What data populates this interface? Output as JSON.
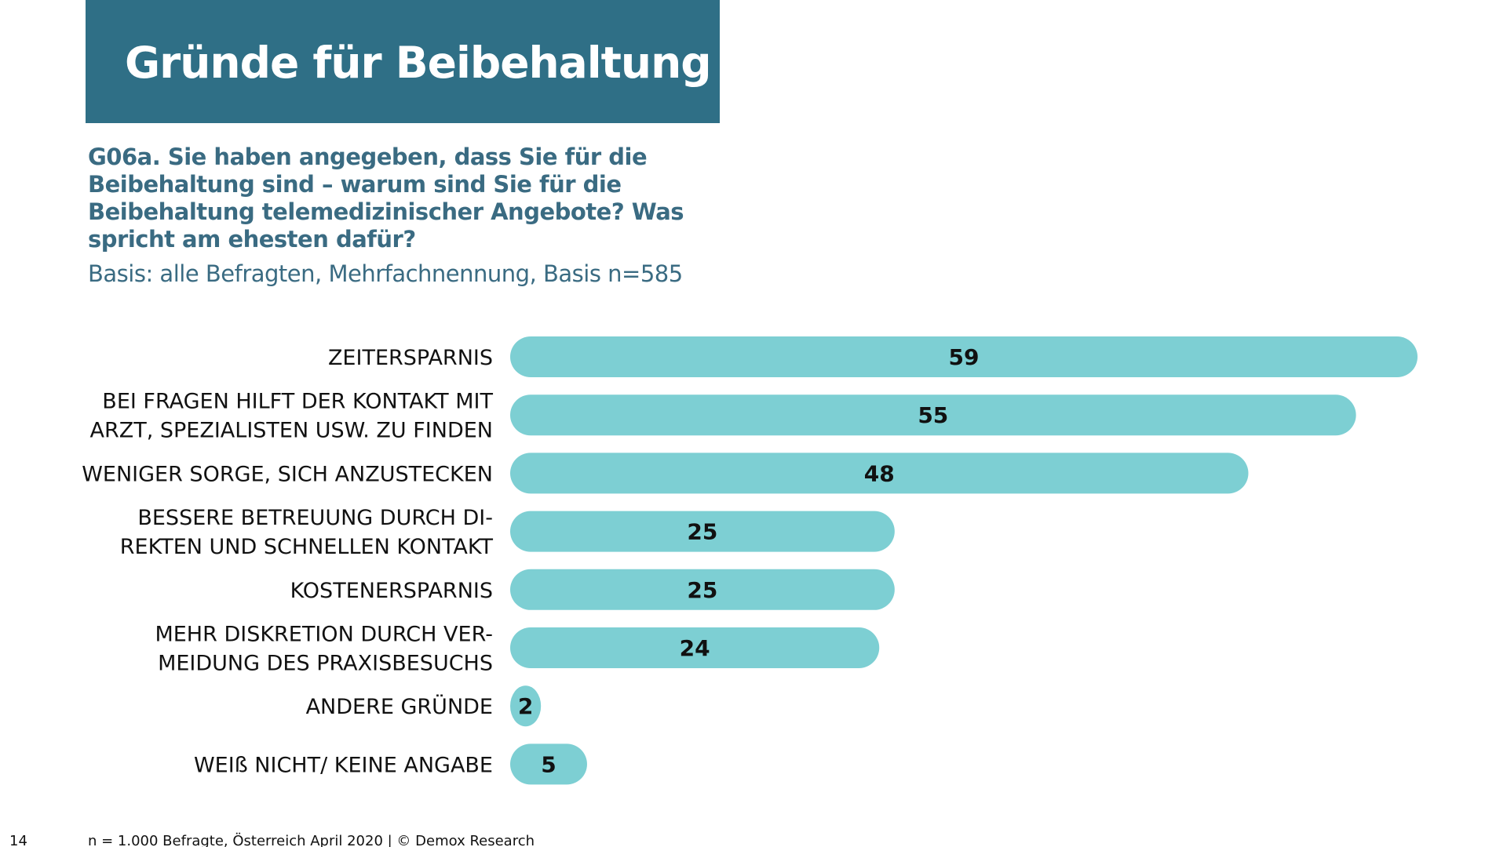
{
  "title": "Gründe für Beibehaltung",
  "question": "G06a. Sie haben angegeben, dass Sie für die Beibehaltung sind – warum sind Sie für die Beibehaltung telemedizinischer Angebote? Was spricht am ehesten dafür?",
  "basis": "Basis: alle Befragten, Mehrfachnennung, Basis n=585",
  "footer": {
    "page_number": "14",
    "source": "n = 1.000 Befragte, Österreich April 2020 | © Demox Research"
  },
  "colors": {
    "title_bg": "#2f6f86",
    "bar": "#7dcfd3",
    "question_text": "#3a6b82"
  },
  "chart_data": {
    "type": "bar",
    "orientation": "horizontal",
    "categories": [
      [
        "ZEITERSPARNIS"
      ],
      [
        "BEI FRAGEN HILFT DER KONTAKT MIT",
        "ARZT, SPEZIALISTEN USW. ZU FINDEN"
      ],
      [
        "WENIGER SORGE, SICH ANZUSTECKEN"
      ],
      [
        "BESSERE BETREUUNG DURCH DI-",
        "REKTEN UND SCHNELLEN KONTAKT"
      ],
      [
        "KOSTENERSPARNIS"
      ],
      [
        "MEHR DISKRETION DURCH VER-",
        "MEIDUNG DES PRAXISBESUCHS"
      ],
      [
        "ANDERE GRÜNDE"
      ],
      [
        "WEIß NICHT/ KEINE ANGABE"
      ]
    ],
    "values": [
      59,
      55,
      48,
      25,
      25,
      24,
      2,
      5
    ],
    "data_labels": [
      "59",
      "55",
      "48",
      "25",
      "25",
      "24",
      "2",
      "5"
    ],
    "xlim": [
      0,
      59
    ],
    "grid": false,
    "legend": "none"
  }
}
